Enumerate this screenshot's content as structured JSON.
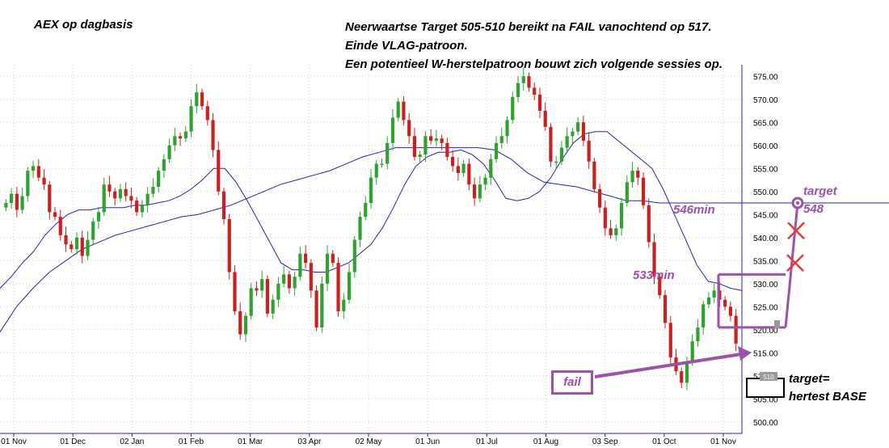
{
  "chart_data": {
    "type": "candlestick",
    "title": "AEX op dagbasis",
    "y_ticks": [
      500,
      505,
      510,
      515,
      520,
      525,
      530,
      535,
      540,
      545,
      550,
      555,
      560,
      565,
      570,
      575
    ],
    "y_tick_labels": [
      "500.00",
      "505.00",
      "510.00",
      "515.00",
      "520.00",
      "525.00",
      "530.00",
      "535.00",
      "540.00",
      "545.00",
      "550.00",
      "555.00",
      "560.00",
      "565.00",
      "570.00",
      "575.00"
    ],
    "ylim": [
      497.5,
      577.5
    ],
    "x_ticks": [
      "01 Nov",
      "01 Dec",
      "02 Jan",
      "01 Feb",
      "01 Mar",
      "03 Apr",
      "02 May",
      "01 Jun",
      "01 Jul",
      "01 Aug",
      "03 Sep",
      "01 Oct",
      "01 Nov"
    ],
    "grid": true,
    "close_series": [
      547.5,
      549.5,
      546,
      549,
      554.5,
      555.5,
      553,
      551.5,
      545.5,
      544.5,
      540.5,
      538.5,
      537.5,
      540,
      536,
      539.5,
      543.5,
      545.5,
      551.5,
      550,
      548.5,
      550.5,
      549,
      548,
      545.5,
      547,
      549.5,
      551,
      554.5,
      557,
      560,
      562,
      561.5,
      563,
      568.5,
      571.5,
      568.5,
      565.5,
      559,
      550,
      544,
      532.5,
      524,
      519,
      523,
      529,
      528.5,
      531,
      523.5,
      526.5,
      530,
      532,
      529,
      531.5,
      536.5,
      534.5,
      528.5,
      520.5,
      530,
      536.5,
      534.5,
      524,
      526.5,
      532.5,
      539.5,
      544.5,
      547.5,
      553,
      556,
      556,
      560.5,
      566,
      569.5,
      565.5,
      562,
      557.5,
      558,
      562,
      561,
      561.5,
      560.5,
      557.5,
      555.5,
      554,
      556,
      551.5,
      548.5,
      551.5,
      553,
      557,
      560.5,
      562,
      565.5,
      570.5,
      573.5,
      575,
      572.5,
      571,
      567.5,
      564,
      556.5,
      556.5,
      559.5,
      562,
      563,
      565,
      561,
      556.5,
      550.5,
      546.5,
      542,
      540.5,
      542,
      547.5,
      552,
      554.5,
      553,
      547,
      539,
      531.5,
      527.5,
      521.5,
      514,
      511,
      508.5,
      513,
      517.5,
      520.5,
      525.5,
      527,
      528.5,
      526.5,
      525,
      523,
      517
    ],
    "moving_averages": [
      {
        "name": "short",
        "values": [
          529,
          531.5,
          534.5,
          537,
          540.5,
          543,
          545,
          546,
          546,
          546.5,
          546.5,
          546.5,
          547,
          547,
          547.5,
          548,
          549,
          550.5,
          552.5,
          555,
          555,
          552,
          548,
          543.5,
          539,
          534.5,
          533,
          533,
          532.5,
          532.5,
          533.5,
          534.5,
          536.5,
          538.5,
          542,
          546.5,
          551.5,
          555.5,
          557.5,
          558.5,
          558.5,
          559,
          558,
          556,
          552.5,
          548.5,
          548,
          548.5,
          550,
          553,
          557,
          560.5,
          562.5,
          563,
          563,
          561,
          559,
          557,
          555,
          550.5,
          545,
          539.5,
          534,
          530.5,
          530,
          529,
          528.5
        ]
      },
      {
        "name": "long",
        "values": [
          519.5,
          525,
          529,
          532.5,
          535,
          537.5,
          539,
          540.5,
          541.5,
          542.5,
          543.5,
          544.5,
          545,
          546,
          547,
          548.5,
          550,
          551.5,
          552.5,
          553.5,
          554.5,
          556,
          557.5,
          558.5,
          559.5,
          559.5,
          559.5,
          559.5,
          559.5,
          559.5,
          559,
          557,
          554,
          552,
          551.5,
          551,
          550,
          549,
          548,
          548,
          547.5,
          547.5,
          547.5,
          547.5,
          547.5,
          547.5
        ]
      }
    ]
  },
  "annotations": {
    "chart_title": "AEX op dagbasis",
    "lines": [
      "Neerwaartse Target 505-510 bereikt na FAIL vanochtend op 517.",
      "Einde VLAG-patroon.",
      "Een potentieel W-herstelpatroon bouwt zich volgende sessies op."
    ],
    "level_546": "546min",
    "level_533": "533min",
    "target_word": "target",
    "target_value": "548",
    "fail_label": "fail",
    "base_line1": "target=",
    "base_line2": "hertest BASE",
    "marker_value": "510"
  },
  "colors": {
    "up_candle": "#2ea12e",
    "down_candle": "#cc1f1f",
    "moving_average": "#2424a8",
    "annotation": "#9b52a8",
    "cross": "#e03a3a",
    "grid": "#d0d0d0"
  }
}
